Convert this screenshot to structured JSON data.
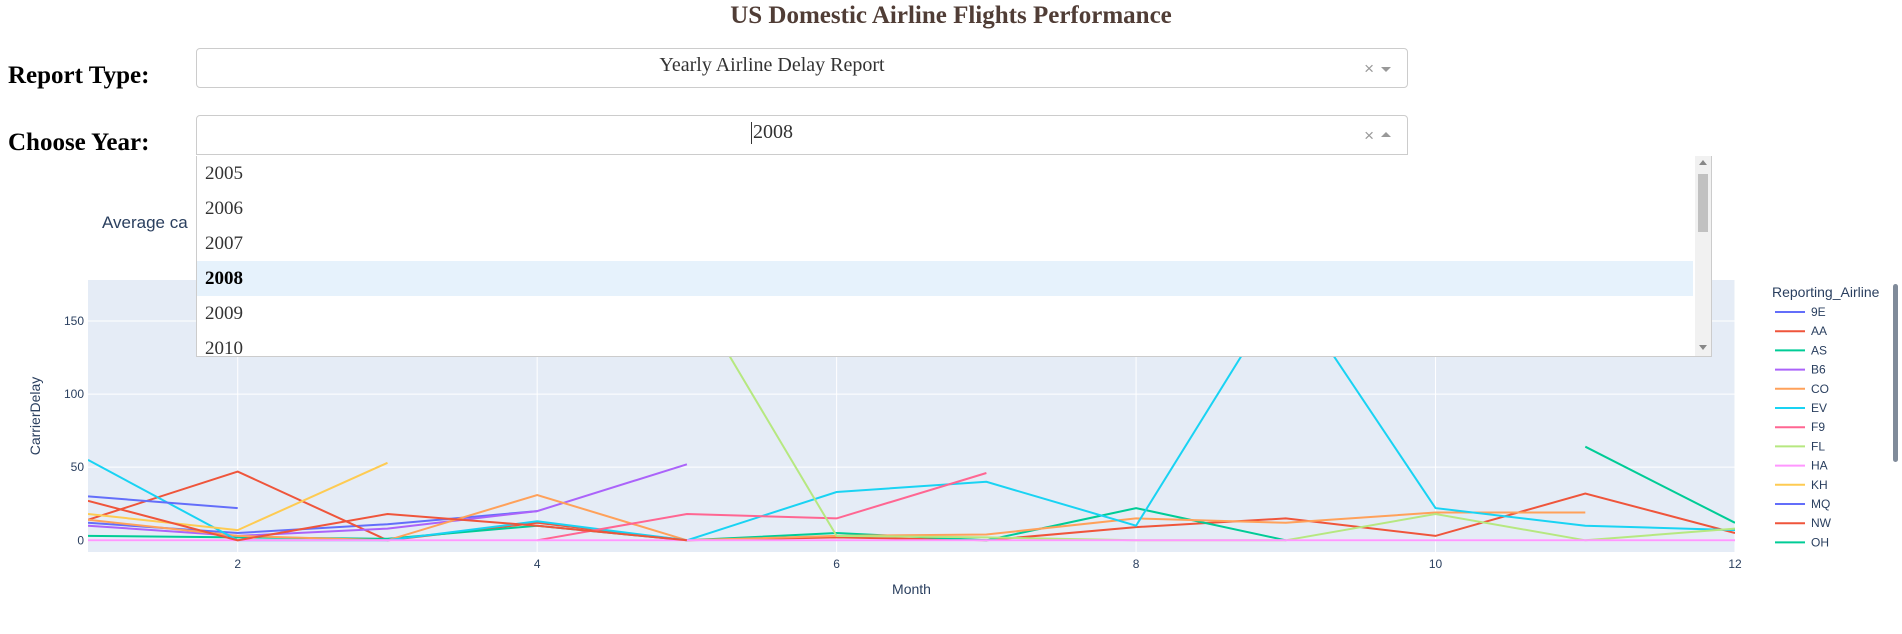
{
  "header": {
    "title": "US Domestic Airline Flights Performance"
  },
  "report": {
    "label": "Report Type:",
    "value": "Yearly Airline Delay Report",
    "clear": "×"
  },
  "year": {
    "label": "Choose Year:",
    "value": "2008",
    "clear": "×",
    "options": [
      "2005",
      "2006",
      "2007",
      "2008",
      "2009",
      "2010"
    ],
    "selected": "2008"
  },
  "chart_title_partial": "Average ca",
  "chart_data": {
    "type": "line",
    "xlabel": "Month",
    "ylabel": "CarrierDelay",
    "xlim": [
      1,
      12
    ],
    "ylim": [
      -8,
      178
    ],
    "xticks": [
      2,
      4,
      6,
      8,
      10,
      12
    ],
    "yticks": [
      0,
      50,
      100,
      150
    ],
    "grid": true,
    "legend_title": "Reporting_Airline",
    "legend_placement": "right",
    "series": [
      {
        "name": "9E",
        "color": "#636efa",
        "points": [
          [
            1,
            12
          ],
          [
            2,
            5
          ],
          [
            3,
            11
          ],
          [
            4,
            20
          ]
        ]
      },
      {
        "name": "AA",
        "color": "#EF553B",
        "points": [
          [
            1,
            14
          ],
          [
            2,
            47
          ],
          [
            3,
            0
          ],
          [
            4,
            12
          ],
          [
            5,
            0
          ],
          [
            6,
            2
          ],
          [
            7,
            0
          ],
          [
            8,
            9
          ],
          [
            9,
            15
          ],
          [
            10,
            3
          ],
          [
            11,
            32
          ],
          [
            12,
            5
          ]
        ]
      },
      {
        "name": "AS",
        "color": "#00cc96",
        "points": [
          [
            1,
            3
          ],
          [
            2,
            2
          ],
          [
            3,
            1
          ],
          [
            4,
            10
          ],
          [
            5,
            0
          ],
          [
            6,
            5
          ],
          [
            7,
            0
          ],
          [
            8,
            22
          ],
          [
            9,
            0
          ]
        ]
      },
      {
        "name": "B6",
        "color": "#ab63fa",
        "points": [
          [
            1,
            10
          ],
          [
            2,
            3
          ],
          [
            3,
            8
          ],
          [
            4,
            20
          ],
          [
            5,
            52
          ]
        ]
      },
      {
        "name": "CO",
        "color": "#FFA15A",
        "points": [
          [
            1,
            14
          ],
          [
            2,
            3
          ],
          [
            3,
            0
          ],
          [
            4,
            31
          ],
          [
            5,
            0
          ],
          [
            6,
            3
          ],
          [
            7,
            4
          ],
          [
            8,
            15
          ],
          [
            9,
            12
          ],
          [
            10,
            19
          ],
          [
            11,
            19
          ]
        ]
      },
      {
        "name": "EV",
        "color": "#19d3f3",
        "points": [
          [
            1,
            55
          ],
          [
            2,
            0
          ],
          [
            3,
            0
          ],
          [
            4,
            13
          ],
          [
            5,
            0
          ],
          [
            6,
            33
          ],
          [
            7,
            40
          ],
          [
            8,
            10
          ],
          [
            9,
            175
          ],
          [
            10,
            22
          ],
          [
            11,
            10
          ],
          [
            12,
            7
          ]
        ]
      },
      {
        "name": "F9",
        "color": "#FF6692",
        "points": [
          [
            4,
            0
          ],
          [
            5,
            18
          ],
          [
            6,
            15
          ],
          [
            7,
            46
          ]
        ]
      },
      {
        "name": "FL",
        "color": "#B6E880",
        "points": [
          [
            5,
            175
          ],
          [
            6,
            3
          ],
          [
            7,
            2
          ],
          [
            8,
            0
          ],
          [
            9,
            0
          ],
          [
            10,
            18
          ],
          [
            11,
            0
          ],
          [
            12,
            8
          ]
        ]
      },
      {
        "name": "HA",
        "color": "#FF97FF",
        "points": [
          [
            1,
            0
          ],
          [
            2,
            0
          ],
          [
            3,
            0
          ],
          [
            4,
            0
          ],
          [
            5,
            0
          ],
          [
            6,
            0
          ],
          [
            7,
            0
          ],
          [
            8,
            0
          ],
          [
            9,
            0
          ],
          [
            10,
            0
          ],
          [
            11,
            0
          ],
          [
            12,
            0
          ]
        ]
      },
      {
        "name": "KH",
        "color": "#FECB52",
        "points": [
          [
            1,
            18
          ],
          [
            2,
            7
          ],
          [
            3,
            53
          ]
        ]
      },
      {
        "name": "MQ",
        "color": "#636efa",
        "points": [
          [
            1,
            30
          ],
          [
            2,
            22
          ]
        ]
      },
      {
        "name": "NW",
        "color": "#EF553B",
        "points": [
          [
            1,
            27
          ],
          [
            2,
            0
          ],
          [
            3,
            18
          ],
          [
            4,
            10
          ],
          [
            5,
            0
          ]
        ]
      },
      {
        "name": "OH",
        "color": "#00cc96",
        "points": [
          [
            11,
            64
          ],
          [
            12,
            12
          ]
        ]
      }
    ]
  }
}
